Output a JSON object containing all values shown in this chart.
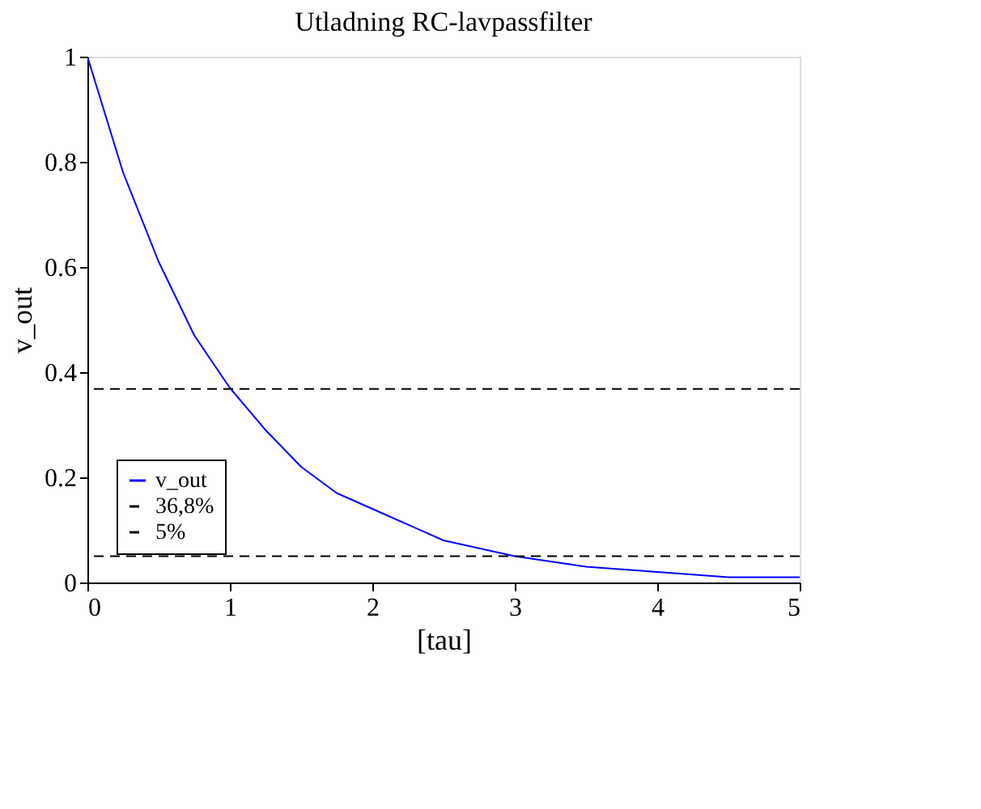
{
  "chart_data": {
    "type": "line",
    "title": "Utladning RC-lavpassfilter",
    "xlabel": "[tau]",
    "ylabel": "v_out",
    "x": [
      0,
      0.25,
      0.5,
      0.75,
      1,
      1.25,
      1.5,
      1.75,
      2,
      2.5,
      3,
      3.5,
      4,
      4.5,
      5
    ],
    "series": [
      {
        "name": "v_out",
        "color": "#0000ff",
        "values": [
          1,
          0.78,
          0.61,
          0.47,
          0.37,
          0.29,
          0.22,
          0.17,
          0.14,
          0.08,
          0.05,
          0.03,
          0.02,
          0.01,
          0.01
        ]
      }
    ],
    "ref_lines": [
      {
        "axis": "y",
        "value": 0.368,
        "label": "36,8%",
        "color": "#000000",
        "line_style": "dashed"
      },
      {
        "axis": "y",
        "value": 0.05,
        "label": "5%",
        "color": "#000000",
        "line_style": "dashed"
      }
    ],
    "xlim": [
      0,
      5
    ],
    "ylim": [
      0,
      1
    ],
    "xticks": [
      0,
      1,
      2,
      3,
      4,
      5
    ],
    "yticks": [
      0,
      0.2,
      0.4,
      0.6,
      0.8,
      1
    ],
    "grid": false,
    "legend": "bottom left",
    "marker": "none",
    "line_style": "solid"
  }
}
